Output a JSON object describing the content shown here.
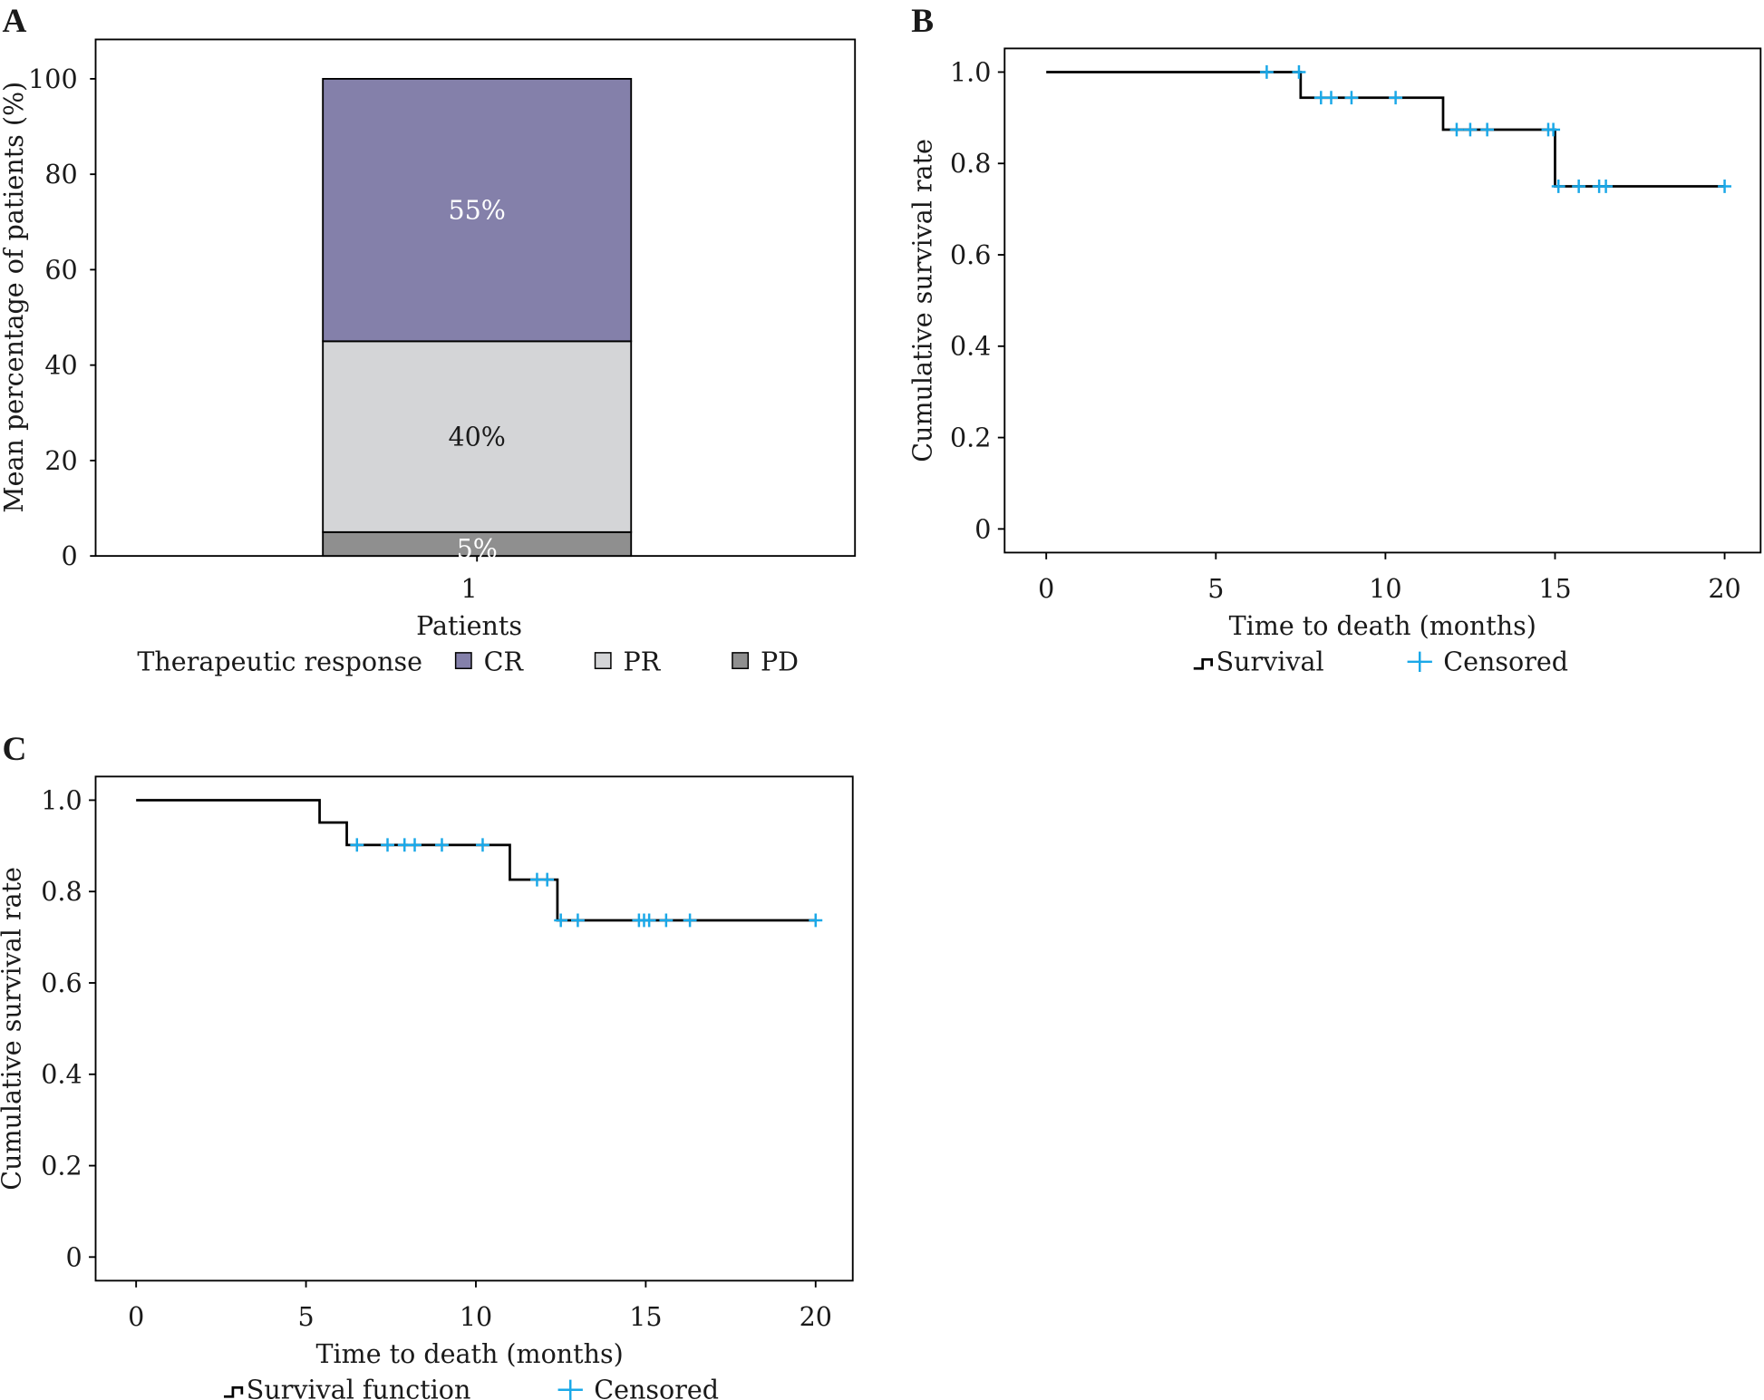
{
  "panels": {
    "a": "A",
    "b": "B",
    "c": "C"
  },
  "chart_data": [
    {
      "type": "bar",
      "stacked": true,
      "categories": [
        "1"
      ],
      "xlabel": "Patients",
      "ylabel": "Mean percentage of patients (%)",
      "ylim": [
        0,
        100
      ],
      "yticks": [
        0,
        20,
        40,
        60,
        80,
        100
      ],
      "legend_title": "Therapeutic response",
      "legend_position": "bottom",
      "series": [
        {
          "name": "PD",
          "values": [
            5
          ],
          "label": "5%",
          "color": "#8f8f8f",
          "label_color": "#ffffff"
        },
        {
          "name": "PR",
          "values": [
            40
          ],
          "label": "40%",
          "color": "#d4d5d7",
          "label_color": "#1a1a1a"
        },
        {
          "name": "CR",
          "values": [
            55
          ],
          "label": "55%",
          "color": "#8480aa",
          "label_color": "#ffffff"
        }
      ],
      "legend_order": [
        "CR",
        "PR",
        "PD"
      ]
    },
    {
      "type": "line",
      "subtype": "kaplan-meier",
      "xlabel": "Time to death (months)",
      "ylabel": "Cumulative survival rate",
      "xlim": [
        0,
        20
      ],
      "ylim": [
        0,
        1.0
      ],
      "xticks": [
        0,
        5,
        10,
        15,
        20
      ],
      "yticks": [
        "0",
        "0.2",
        "0.4",
        "0.6",
        "0.8",
        "1.0"
      ],
      "legend": [
        "Survival",
        "Censored"
      ],
      "legend_position": "bottom",
      "steps": [
        [
          0,
          1.0
        ],
        [
          7.5,
          0.944
        ],
        [
          11.7,
          0.874
        ],
        [
          15.0,
          0.75
        ]
      ],
      "end_x": 20,
      "censored": [
        6.5,
        7.45,
        8.1,
        8.4,
        9.0,
        10.3,
        12.1,
        12.5,
        13.0,
        14.8,
        14.95,
        15.1,
        15.7,
        16.3,
        16.5,
        20.0
      ],
      "line_color": "#000000",
      "censor_color": "#1aa8e8"
    },
    {
      "type": "line",
      "subtype": "kaplan-meier",
      "xlabel": "Time to death (months)",
      "ylabel": "Cumulative survival rate",
      "xlim": [
        0,
        20
      ],
      "ylim": [
        0,
        1.0
      ],
      "xticks": [
        0,
        5,
        10,
        15,
        20
      ],
      "yticks": [
        "0",
        "0.2",
        "0.4",
        "0.6",
        "0.8",
        "1.0"
      ],
      "legend": [
        "Survival function",
        "Censored"
      ],
      "legend_position": "bottom",
      "steps": [
        [
          0,
          1.0
        ],
        [
          5.4,
          0.951
        ],
        [
          6.2,
          0.902
        ],
        [
          11.0,
          0.826
        ],
        [
          12.4,
          0.737
        ]
      ],
      "end_x": 20,
      "censored": [
        6.5,
        7.4,
        7.9,
        8.2,
        9.0,
        10.2,
        11.8,
        12.1,
        12.5,
        13.0,
        14.8,
        14.95,
        15.1,
        15.6,
        16.3,
        20.0
      ],
      "line_color": "#000000",
      "censor_color": "#1aa8e8"
    }
  ]
}
